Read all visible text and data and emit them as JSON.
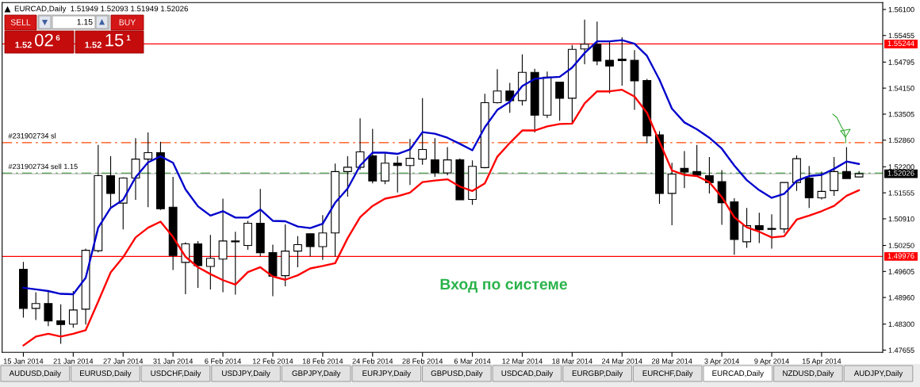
{
  "chart_data": {
    "type": "candlestick",
    "title": "EURCAD,Daily  1.51949 1.52093 1.51949 1.52026",
    "categories": [
      "15 Jan 2014",
      null,
      null,
      null,
      "21 Jan 2014",
      null,
      null,
      null,
      "27 Jan 2014",
      null,
      null,
      null,
      "31 Jan 2014",
      null,
      null,
      null,
      "6 Feb 2014",
      null,
      null,
      null,
      "12 Feb 2014",
      null,
      null,
      null,
      "18 Feb 2014",
      null,
      null,
      null,
      "24 Feb 2014",
      null,
      null,
      null,
      "28 Feb 2014",
      null,
      null,
      null,
      "6 Mar 2014",
      null,
      null,
      null,
      "12 Mar 2014",
      null,
      null,
      null,
      "18 Mar 2014",
      null,
      null,
      null,
      "24 Mar 2014",
      null,
      null,
      null,
      "28 Mar 2014",
      null,
      null,
      null,
      "3 Apr 2014",
      null,
      null,
      null,
      "9 Apr 2014",
      null,
      null,
      null,
      "15 Apr 2014",
      null,
      null,
      null
    ],
    "ohlc": [
      [
        1.4966,
        1.4984,
        1.4846,
        1.4869
      ],
      [
        1.4869,
        1.4909,
        1.484,
        1.4881
      ],
      [
        1.4881,
        1.4914,
        1.4825,
        1.4838
      ],
      [
        1.4838,
        1.4879,
        1.4781,
        1.4829
      ],
      [
        1.483,
        1.4912,
        1.4821,
        1.4865
      ],
      [
        1.4867,
        1.5017,
        1.4829,
        1.5013
      ],
      [
        1.5012,
        1.5274,
        1.5008,
        1.5198
      ],
      [
        1.5198,
        1.5246,
        1.5118,
        1.5154
      ],
      [
        1.513,
        1.5194,
        1.5065,
        1.5192
      ],
      [
        1.5192,
        1.5291,
        1.5138,
        1.5239
      ],
      [
        1.5239,
        1.5305,
        1.512,
        1.5255
      ],
      [
        1.5255,
        1.5282,
        1.5113,
        1.5116
      ],
      [
        1.512,
        1.5195,
        1.4964,
        1.5
      ],
      [
        1.4983,
        1.5033,
        1.4904,
        1.5029
      ],
      [
        1.5029,
        1.5036,
        1.492,
        1.4975
      ],
      [
        1.4973,
        1.5051,
        1.4916,
        1.4993
      ],
      [
        1.4991,
        1.5141,
        1.4909,
        1.5036
      ],
      [
        1.5036,
        1.5059,
        1.4903,
        1.5034
      ],
      [
        1.5025,
        1.5086,
        1.5014,
        1.508
      ],
      [
        1.508,
        1.5165,
        1.4998,
        1.5007
      ],
      [
        1.5007,
        1.5027,
        1.4899,
        1.4949
      ],
      [
        1.495,
        1.5077,
        1.4924,
        1.5011
      ],
      [
        1.5011,
        1.5048,
        1.4971,
        1.5027
      ],
      [
        1.5054,
        1.5054,
        1.4998,
        1.5022
      ],
      [
        1.5022,
        1.51,
        1.4989,
        1.5056
      ],
      [
        1.5056,
        1.5228,
        1.4998,
        1.5208
      ],
      [
        1.5208,
        1.5246,
        1.5146,
        1.5219
      ],
      [
        1.5219,
        1.534,
        1.5213,
        1.5257
      ],
      [
        1.5247,
        1.5314,
        1.5179,
        1.5185
      ],
      [
        1.5185,
        1.5253,
        1.5177,
        1.5229
      ],
      [
        1.5229,
        1.5246,
        1.5156,
        1.5223
      ],
      [
        1.5223,
        1.5289,
        1.5175,
        1.5241
      ],
      [
        1.5239,
        1.539,
        1.5225,
        1.5263
      ],
      [
        1.5237,
        1.5291,
        1.5195,
        1.5205
      ],
      [
        1.5205,
        1.5269,
        1.5199,
        1.5237
      ],
      [
        1.5237,
        1.5241,
        1.5138,
        1.5138
      ],
      [
        1.5139,
        1.5236,
        1.5126,
        1.5221
      ],
      [
        1.5218,
        1.5401,
        1.5216,
        1.5379
      ],
      [
        1.5379,
        1.5462,
        1.5377,
        1.5408
      ],
      [
        1.5408,
        1.5428,
        1.5354,
        1.5384
      ],
      [
        1.5384,
        1.5499,
        1.5372,
        1.5454
      ],
      [
        1.5454,
        1.5463,
        1.5305,
        1.5348
      ],
      [
        1.5348,
        1.5456,
        1.5341,
        1.5442
      ],
      [
        1.543,
        1.543,
        1.5334,
        1.539
      ],
      [
        1.539,
        1.5522,
        1.5327,
        1.5511
      ],
      [
        1.5512,
        1.5585,
        1.5474,
        1.5524
      ],
      [
        1.5524,
        1.558,
        1.5472,
        1.5482
      ],
      [
        1.5484,
        1.5531,
        1.5402,
        1.547
      ],
      [
        1.5487,
        1.5541,
        1.5421,
        1.5483
      ],
      [
        1.5484,
        1.5509,
        1.5361,
        1.5433
      ],
      [
        1.5434,
        1.5438,
        1.5278,
        1.5297
      ],
      [
        1.5299,
        1.5308,
        1.5128,
        1.5154
      ],
      [
        1.5154,
        1.523,
        1.5075,
        1.5202
      ],
      [
        1.5216,
        1.5259,
        1.5167,
        1.5207
      ],
      [
        1.5208,
        1.5274,
        1.5196,
        1.5199
      ],
      [
        1.5198,
        1.5244,
        1.5154,
        1.5181
      ],
      [
        1.5183,
        1.5212,
        1.5076,
        1.5131
      ],
      [
        1.5133,
        1.5142,
        1.5002,
        1.504
      ],
      [
        1.5034,
        1.5118,
        1.5019,
        1.5074
      ],
      [
        1.5074,
        1.5106,
        1.5031,
        1.5064
      ],
      [
        1.5067,
        1.5102,
        1.5017,
        1.5065
      ],
      [
        1.5066,
        1.5181,
        1.5056,
        1.5181
      ],
      [
        1.5181,
        1.5248,
        1.516,
        1.524
      ],
      [
        1.5192,
        1.5222,
        1.5118,
        1.5143
      ],
      [
        1.5143,
        1.5208,
        1.5139,
        1.5159
      ],
      [
        1.5161,
        1.5244,
        1.5148,
        1.5208
      ],
      [
        1.5208,
        1.5269,
        1.5191,
        1.5191
      ],
      [
        1.51949,
        1.52093,
        1.51949,
        1.52026
      ]
    ],
    "series": [
      {
        "type": "line",
        "color": "#0000cc",
        "values": [
          1.492,
          1.4916,
          1.4912,
          1.4905,
          1.4904,
          1.4945,
          1.5069,
          1.5118,
          1.5138,
          1.5194,
          1.5231,
          1.5246,
          1.523,
          1.5164,
          1.5122,
          1.5099,
          1.511,
          1.5094,
          1.5094,
          1.5114,
          1.5086,
          1.5085,
          1.5072,
          1.5068,
          1.5079,
          1.5131,
          1.5166,
          1.5223,
          1.5255,
          1.5255,
          1.5252,
          1.5263,
          1.5306,
          1.5302,
          1.5292,
          1.5277,
          1.5261,
          1.5318,
          1.5361,
          1.5381,
          1.542,
          1.5438,
          1.5441,
          1.5443,
          1.5466,
          1.5502,
          1.5531,
          1.5531,
          1.5534,
          1.5525,
          1.5495,
          1.5436,
          1.5364,
          1.533,
          1.5313,
          1.5292,
          1.5265,
          1.5223,
          1.5187,
          1.5162,
          1.5143,
          1.5153,
          1.5185,
          1.5197,
          1.52,
          1.5215,
          1.5233,
          1.5227
        ]
      },
      {
        "type": "line",
        "color": "#ff0000",
        "values": [
          1.4777,
          1.4799,
          1.4806,
          1.4799,
          1.4806,
          1.4815,
          1.4886,
          1.4958,
          1.4996,
          1.5045,
          1.5069,
          1.5084,
          1.5046,
          1.4997,
          1.4971,
          1.4954,
          1.4939,
          1.4928,
          1.4959,
          1.4971,
          1.4948,
          1.494,
          1.4951,
          1.4968,
          1.4974,
          1.4981,
          1.5043,
          1.5095,
          1.5123,
          1.5141,
          1.5147,
          1.5156,
          1.5182,
          1.5186,
          1.5189,
          1.5171,
          1.516,
          1.5179,
          1.5245,
          1.5279,
          1.531,
          1.531,
          1.532,
          1.5326,
          1.5327,
          1.5377,
          1.5407,
          1.5407,
          1.5411,
          1.5394,
          1.5354,
          1.5282,
          1.5211,
          1.52,
          1.5197,
          1.5182,
          1.5145,
          1.5095,
          1.507,
          1.5059,
          1.5045,
          1.5048,
          1.5089,
          1.5099,
          1.511,
          1.5123,
          1.5148,
          1.5162
        ]
      }
    ],
    "ylim": [
      1.476,
      1.5627
    ],
    "yticks": [
      {
        "value": 1.561,
        "label": "1.56100"
      },
      1.55455,
      1.54795,
      {
        "value": 1.5415,
        "label": "1.54150"
      },
      1.53505,
      {
        "value": 1.5286,
        "label": "1.52860"
      },
      {
        "value": 1.522,
        "label": "1.52200"
      },
      1.51555,
      {
        "value": 1.5091,
        "label": "1.50910"
      },
      {
        "value": 1.5025,
        "label": "1.50250"
      },
      1.49605,
      {
        "value": 1.4896,
        "label": "1.48960"
      },
      {
        "value": 1.483,
        "label": "1.48300"
      },
      1.47655
    ],
    "ref_lines": [
      {
        "axis": "y",
        "value": 1.55244,
        "label": "1.55244",
        "color": "#ff0000",
        "line_style": "solid"
      },
      {
        "axis": "y",
        "value": 1.49976,
        "label": "1.49976",
        "color": "#ff0000",
        "line_style": "solid"
      },
      {
        "axis": "y",
        "value": 1.528,
        "label": "#231902734 sl",
        "color": "#ff4500",
        "line_style": "dashdot"
      },
      {
        "axis": "y",
        "value": 1.5204,
        "label": "#231902734 sell 1.15",
        "color": "#008000",
        "line_style": "dashdot"
      },
      {
        "axis": "y",
        "value": 1.52026,
        "label": "1.52026",
        "color": "#c0c0c0",
        "line_style": "solid"
      }
    ],
    "annotations": [
      "Вход по системе",
      "SELL",
      "1.15",
      "BUY",
      "1.52",
      "02",
      "6",
      "1.52",
      "15",
      "1",
      "AUDUSD,Daily",
      "EURUSD,Daily",
      "USDCHF,Daily",
      "USDJPY,Daily",
      "GBPJPY,Daily",
      "EURJPY,Daily",
      "GBPUSD,Daily",
      "USDCAD,Daily",
      "EURGBP,Daily",
      "EURCHF,Daily",
      "EURCAD,Daily",
      "NZDUSD,Daily",
      "AUDJPY,Daily"
    ]
  }
}
